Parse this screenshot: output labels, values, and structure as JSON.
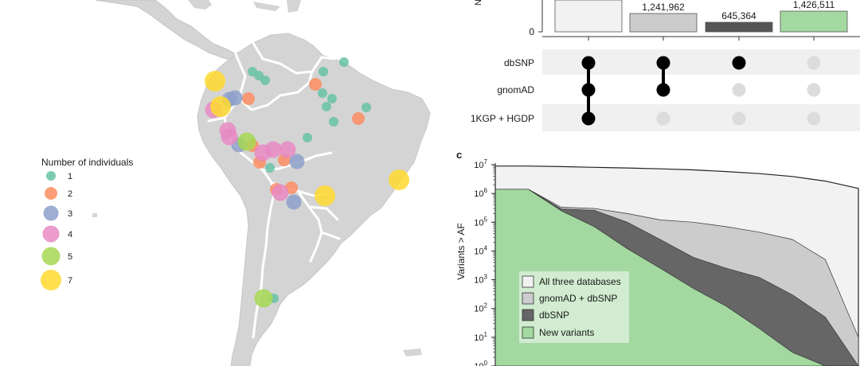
{
  "map": {
    "legend_title": "Number of individuals",
    "legend": [
      {
        "label": "1",
        "color": "#66c2a5"
      },
      {
        "label": "2",
        "color": "#fc8d62"
      },
      {
        "label": "3",
        "color": "#8da0cb"
      },
      {
        "label": "4",
        "color": "#e78ac3"
      },
      {
        "label": "5",
        "color": "#a6d854"
      },
      {
        "label": "7",
        "color": "#ffd92f"
      }
    ]
  },
  "upset": {
    "ytick_zero": "0",
    "ylabel_fragment": "N",
    "sets": [
      "dbSNP",
      "gnomAD",
      "1KGP + HGDP"
    ],
    "bars": [
      {
        "label": "",
        "color": "#f2f2f2",
        "membership": [
          true,
          true,
          true
        ]
      },
      {
        "label": "1,241,962",
        "color": "#cccccc",
        "membership": [
          true,
          true,
          false
        ]
      },
      {
        "label": "645,364",
        "color": "#555555",
        "membership": [
          true,
          false,
          false
        ]
      },
      {
        "label": "1,426,511",
        "color": "#a3d9a0",
        "membership": [
          false,
          false,
          false
        ]
      }
    ]
  },
  "chart_data": [
    {
      "type": "area",
      "panel_label": "c",
      "ylabel": "Variants > AF",
      "yscale": "log",
      "ylim": [
        1,
        10000000
      ],
      "yticks": [
        {
          "base": "10",
          "exp": "7"
        },
        {
          "base": "10",
          "exp": "6"
        },
        {
          "base": "10",
          "exp": "5"
        },
        {
          "base": "10",
          "exp": "4"
        },
        {
          "base": "10",
          "exp": "3"
        },
        {
          "base": "10",
          "exp": "2"
        },
        {
          "base": "10",
          "exp": "1"
        },
        {
          "base": "10",
          "exp": "0"
        }
      ],
      "series": [
        {
          "name": "All three databases",
          "color": "#f2f2f2",
          "values": [
            9000000,
            9000000,
            8600000,
            8100000,
            7700000,
            7200000,
            6600000,
            5800000,
            4900000,
            3900000,
            2700000,
            1500000
          ]
        },
        {
          "name": "gnomAD + dbSNP",
          "color": "#cccccc",
          "values": [
            1400000,
            1400000,
            330000,
            300000,
            200000,
            120000,
            100000,
            70000,
            45000,
            25000,
            5000,
            10
          ]
        },
        {
          "name": "dbSNP",
          "color": "#666666",
          "values": [
            1400000,
            1400000,
            290000,
            260000,
            100000,
            25000,
            6000,
            2500,
            1200,
            300,
            50,
            1
          ]
        },
        {
          "name": "New variants",
          "color": "#a3d9a0",
          "values": [
            1400000,
            1400000,
            250000,
            70000,
            12000,
            2500,
            500,
            120,
            20,
            3,
            1,
            1
          ]
        }
      ]
    }
  ]
}
